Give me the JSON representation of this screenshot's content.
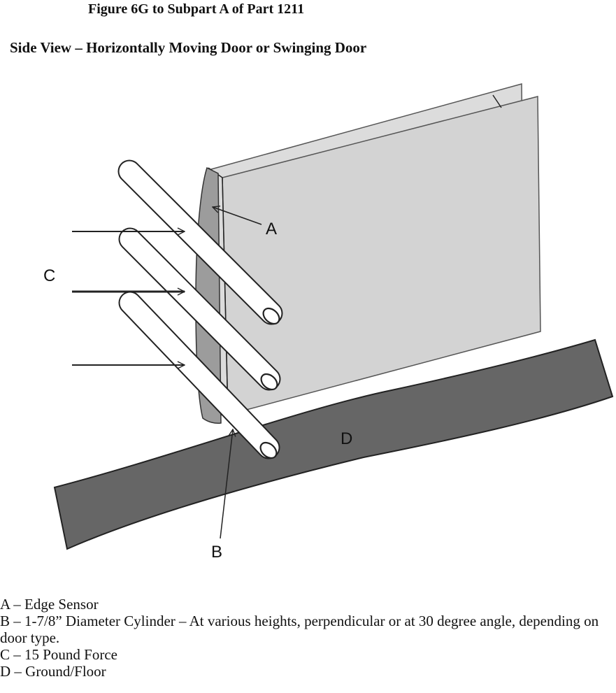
{
  "title": "Figure 6G to Subpart A of Part 1211",
  "subtitle": "Side View – Horizontally Moving Door or Swinging Door",
  "diagram": {
    "labels": {
      "a": "A",
      "b": "B",
      "c": "C",
      "d": "D"
    },
    "colors": {
      "door_panel": "#d3d3d3",
      "door_panel_back": "#dcdcdc",
      "door_edge": "#9c9c9c",
      "floor": "#666666",
      "outline": "#222222",
      "cylinder": "#ffffff"
    }
  },
  "legend": {
    "a": "A – Edge Sensor",
    "b": "B – 1-7/8” Diameter Cylinder – At various heights, perpendicular or at 30 degree angle, depending on door type.",
    "c": "C – 15 Pound Force",
    "d": "D – Ground/Floor"
  }
}
